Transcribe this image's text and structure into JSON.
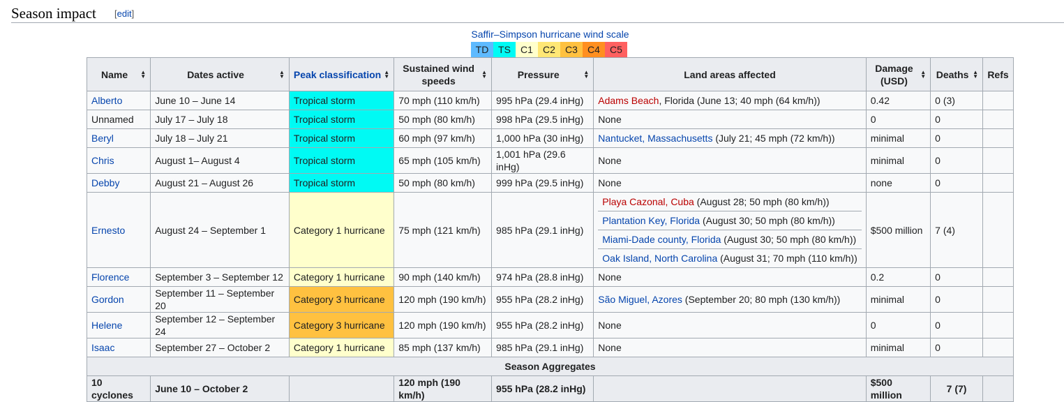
{
  "heading": {
    "title": "Season impact",
    "edit_label": "edit"
  },
  "scale": {
    "title": "Saffir–Simpson hurricane wind scale",
    "items": [
      {
        "label": "TD",
        "color": "#5ebaff"
      },
      {
        "label": "TS",
        "color": "#00faf4"
      },
      {
        "label": "C1",
        "color": "#ffffcc"
      },
      {
        "label": "C2",
        "color": "#ffe775"
      },
      {
        "label": "C3",
        "color": "#ffc140"
      },
      {
        "label": "C4",
        "color": "#ff8f20"
      },
      {
        "label": "C5",
        "color": "#ff6060"
      }
    ]
  },
  "table": {
    "headers": {
      "name": "Name",
      "dates": "Dates active",
      "peak": "Peak classification",
      "wind": "Sustained wind speeds",
      "pressure": "Pressure",
      "land": "Land areas affected",
      "damage": "Damage (USD)",
      "deaths": "Deaths",
      "refs": "Refs"
    },
    "rows": [
      {
        "name": "Alberto",
        "dates": "June 10 – June 14",
        "peak": "Tropical storm",
        "wind": "70 mph (110 km/h)",
        "pressure": "995 hPa (29.4 inHg)",
        "land_link": "Adams Beach",
        "land_rest": ", Florida (June 13; 40 mph (64 km/h))",
        "damage": "0.42",
        "deaths": "0 (3)"
      },
      {
        "name": "Unnamed",
        "dates": "July 17 – July 18",
        "peak": "Tropical storm",
        "wind": "50 mph (80 km/h)",
        "pressure": "998 hPa (29.5 inHg)",
        "land": "None",
        "damage": "0",
        "deaths": "0"
      },
      {
        "name": "Beryl",
        "dates": "July 18 – July 21",
        "peak": "Tropical storm",
        "wind": "60 mph (97 km/h)",
        "pressure": "1,000 hPa (30 inHg)",
        "land_link": "Nantucket, Massachusetts",
        "land_rest": " (July 21; 45 mph (72 km/h))",
        "damage": "minimal",
        "deaths": "0"
      },
      {
        "name": "Chris",
        "dates": "August 1– August 4",
        "peak": "Tropical storm",
        "wind": "65 mph (105 km/h)",
        "pressure": "1,001 hPa (29.6 inHg)",
        "land": "None",
        "damage": "minimal",
        "deaths": "0"
      },
      {
        "name": "Debby",
        "dates": "August 21 – August 26",
        "peak": "Tropical storm",
        "wind": "50 mph (80 km/h)",
        "pressure": "999 hPa (29.5 inHg)",
        "land": "None",
        "damage": "none",
        "deaths": "0"
      },
      {
        "name": "Ernesto",
        "dates": "August 24 – September 1",
        "peak": "Category 1 hurricane",
        "wind": "75 mph (121 km/h)",
        "pressure": "985 hPa (29.1 inHg)",
        "lands": [
          {
            "link": "Playa Cazonal, Cuba",
            "rest": " (August 28; 50 mph (80 km/h))"
          },
          {
            "link": "Plantation Key, Florida",
            "rest": " (August 30; 50 mph (80 km/h))"
          },
          {
            "link": "Miami-Dade county, Florida",
            "rest": " (August 30; 50 mph (80 km/h))"
          },
          {
            "link": "Oak Island, North Carolina",
            "rest": " (August 31; 70 mph (110 km/h))"
          }
        ],
        "damage": "$500 million",
        "deaths": "7 (4)"
      },
      {
        "name": "Florence",
        "dates": "September 3 – September 12",
        "peak": "Category 1 hurricane",
        "wind": "90 mph (140 km/h)",
        "pressure": "974 hPa (28.8 inHg)",
        "land": "None",
        "damage": "0.2",
        "deaths": "0"
      },
      {
        "name": "Gordon",
        "dates": "September 11 – September 20",
        "peak": "Category 3 hurricane",
        "wind": "120 mph (190 km/h)",
        "pressure": "955 hPa (28.2 inHg)",
        "land_link": "São Miguel, Azores",
        "land_rest": " (September 20; 80 mph (130 km/h))",
        "damage": "minimal",
        "deaths": "0"
      },
      {
        "name": "Helene",
        "dates": "September 12 – September 24",
        "peak": "Category 3 hurricane",
        "wind": "120 mph (190 km/h)",
        "pressure": "955 hPa (28.2 inHg)",
        "land": "None",
        "damage": "0",
        "deaths": "0"
      },
      {
        "name": "Isaac",
        "dates": "September 27 – October 2",
        "peak": "Category 1 hurricane",
        "wind": "85 mph (137 km/h)",
        "pressure": "985 hPa (29.1 inHg)",
        "land": "None",
        "damage": "minimal",
        "deaths": "0"
      }
    ],
    "aggregates_label": "Season Aggregates",
    "totals": {
      "name": "10 cyclones",
      "dates": "June 10 – October 2",
      "wind": "120 mph (190 km/h)",
      "pressure": "955 hPa (28.2 inHg)",
      "damage": "$500 million",
      "deaths": "7 (7)"
    }
  }
}
